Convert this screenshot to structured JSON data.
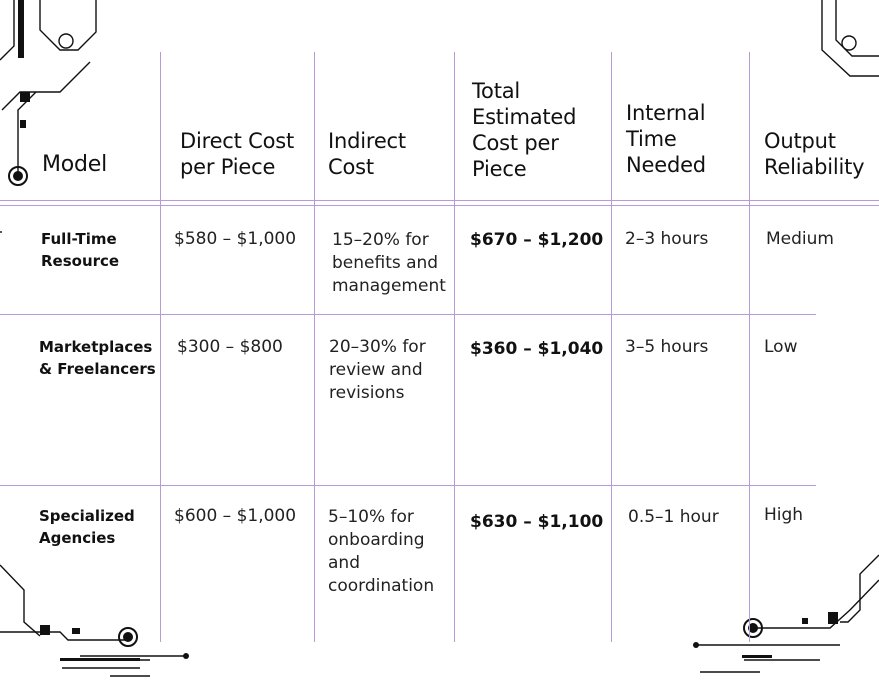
{
  "table": {
    "headers": [
      "Model",
      "Direct Cost per Piece",
      "Indirect Cost",
      "Total Estimated Cost per Piece",
      "Internal Time Needed",
      "Output Reliability"
    ],
    "rows": [
      {
        "model": "Full-Time Resource",
        "direct": "$580 – $1,000",
        "indirect": "15–20% for benefits and management",
        "total": "$670 – $1,200",
        "time": "2–3 hours",
        "reliability": "Medium"
      },
      {
        "model": "Marketplaces & Freelancers",
        "direct": "$300 – $800",
        "indirect": "20–30% for review and revisions",
        "total": "$360 – $1,040",
        "time": "3–5 hours",
        "reliability": "Low"
      },
      {
        "model": "Specialized Agencies",
        "direct": "$600 – $1,000",
        "indirect": "5–10% for onboarding and coordination",
        "total": "$630 – $1,100",
        "time": "0.5–1 hour",
        "reliability": "High"
      }
    ]
  },
  "colors": {
    "grid": "#b79ad6",
    "text": "#1a1a1a",
    "decoration": "#111111"
  }
}
